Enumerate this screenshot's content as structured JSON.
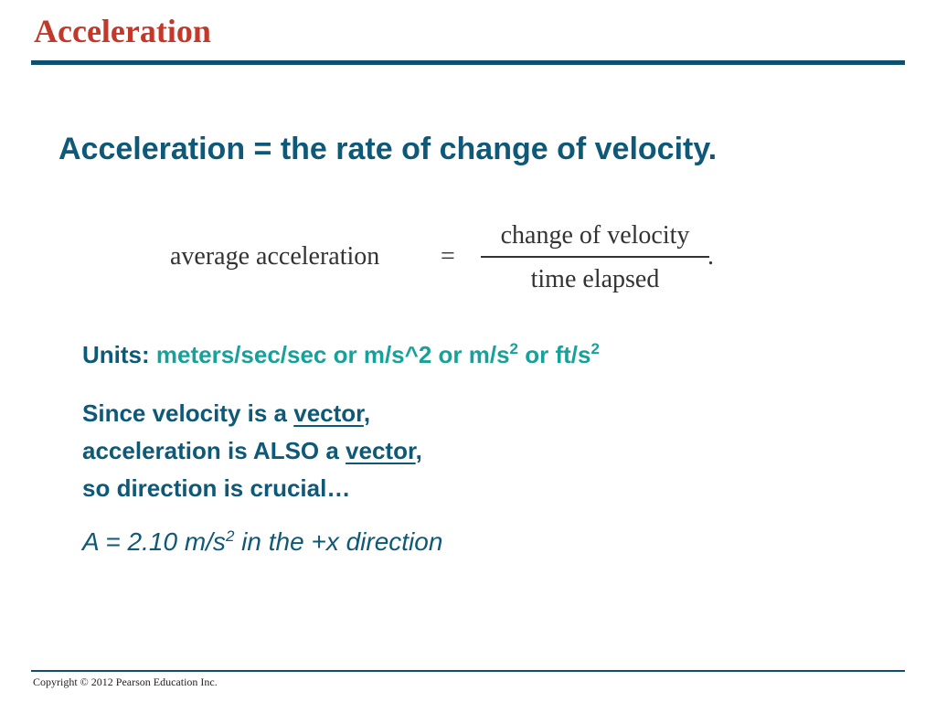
{
  "title": "Acceleration",
  "headline": "Acceleration = the rate of change of velocity.",
  "formula": {
    "lhs": "average acceleration",
    "equals": "=",
    "numerator": "change of velocity",
    "denominator": "time elapsed",
    "period": "."
  },
  "units": {
    "label": "Units:",
    "text1": "meters/sec/sec or m/s^2 or m/s",
    "exp1": "2",
    "text2": " or ft/s",
    "exp2": "2"
  },
  "since": {
    "line1_pre": "Since velocity is a ",
    "line1_word": "vector",
    "line1_post": ",",
    "line2_pre": "acceleration is ALSO a ",
    "line2_word": "vector",
    "line2_post": ",",
    "line3": "so direction is crucial…"
  },
  "example": {
    "pre": "A = 2.10 m/s",
    "exp": "2",
    "post": " in the +x direction"
  },
  "footer": {
    "copyright": "Copyright © 2012 Pearson Education Inc."
  },
  "colors": {
    "title": "#c0392b",
    "rule": "#0d4f70",
    "text": "#0e5878",
    "accent": "#17a19b"
  }
}
